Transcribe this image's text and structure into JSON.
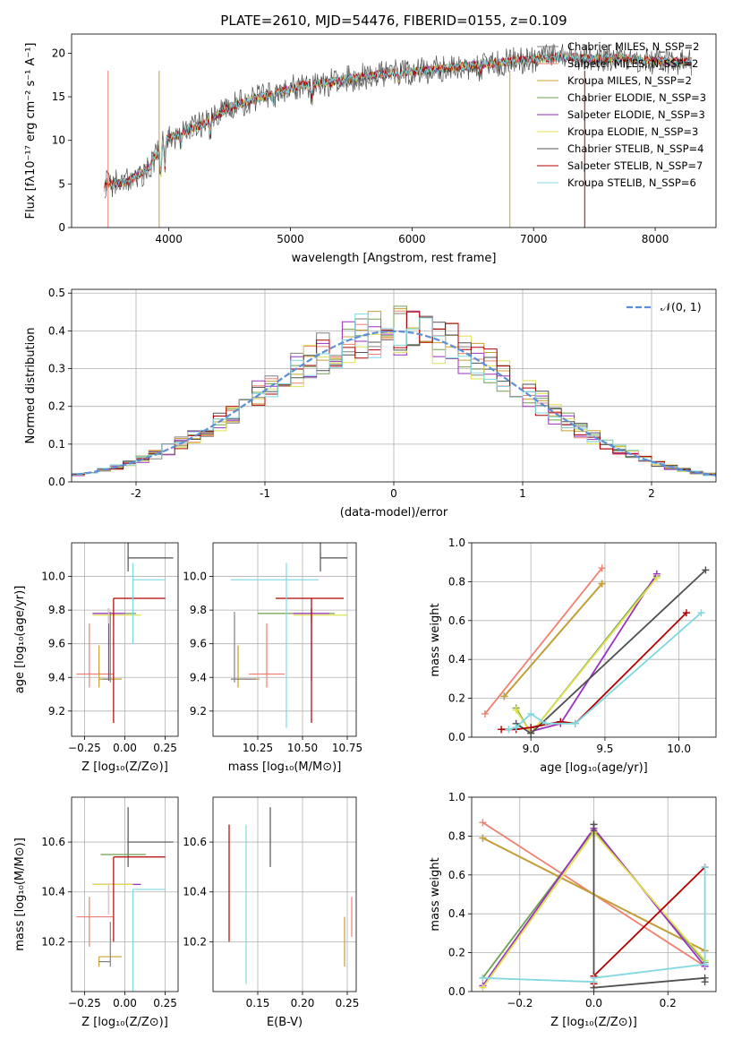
{
  "figure": {
    "title": "PLATE=2610, MJD=54476, FIBERID=0155, z=0.109"
  },
  "colors": {
    "chabrier_miles": "#808080",
    "salpeter_miles": "#f08070",
    "kroupa_miles": "#c8a030",
    "chabrier_elodie": "#70a050",
    "salpeter_elodie": "#9b30c0",
    "kroupa_elodie": "#e0e050",
    "chabrier_stelib": "#505050",
    "salpeter_stelib": "#b00000",
    "kroupa_stelib": "#80d8e0",
    "grid": "#b0b0b0",
    "normal_curve": "#5b8fd8"
  },
  "chart_data": [
    {
      "id": "spectrum",
      "type": "line",
      "xlabel": "wavelength [Angstrom, rest frame]",
      "ylabel": "Flux [fλ10⁻¹⁷ erg cm⁻² s⁻¹ A⁻¹]",
      "xlim": [
        3200,
        8500
      ],
      "ylim": [
        0,
        22.2
      ],
      "xticks": [
        4000,
        5000,
        6000,
        7000,
        8000
      ],
      "yticks": [
        0,
        5,
        10,
        15,
        20
      ],
      "legend_position": "right",
      "legend": [
        "Chabrier MILES, N_SSP=2",
        "Salpeter MILES, N_SSP=2",
        "Kroupa MILES, N_SSP=2",
        "Chabrier ELODIE, N_SSP=3",
        "Salpeter ELODIE, N_SSP=3",
        "Kroupa ELODIE, N_SSP=3",
        "Chabrier STELIB, N_SSP=4",
        "Salpeter STELIB, N_SSP=7",
        "Kroupa STELIB, N_SSP=6"
      ],
      "continuum": [
        [
          3500,
          5.0
        ],
        [
          3650,
          5.2
        ],
        [
          3750,
          6.0
        ],
        [
          3850,
          7.0
        ],
        [
          3950,
          10.0
        ],
        [
          4100,
          10.8
        ],
        [
          4300,
          12.0
        ],
        [
          4500,
          13.8
        ],
        [
          4700,
          14.7
        ],
        [
          4900,
          15.5
        ],
        [
          5100,
          16.3
        ],
        [
          5300,
          16.6
        ],
        [
          5500,
          17.1
        ],
        [
          5700,
          17.5
        ],
        [
          5900,
          17.8
        ],
        [
          6100,
          18.0
        ],
        [
          6300,
          18.3
        ],
        [
          6500,
          18.6
        ],
        [
          6700,
          18.9
        ],
        [
          6900,
          19.2
        ],
        [
          7100,
          19.4
        ],
        [
          7300,
          19.6
        ],
        [
          7500,
          19.3
        ],
        [
          7700,
          19.5
        ],
        [
          7900,
          19.2
        ],
        [
          8100,
          19.0
        ],
        [
          8300,
          19.0
        ]
      ],
      "ranges": [
        [
          3470,
          8300
        ],
        [
          3470,
          8300
        ],
        [
          3470,
          8300
        ],
        [
          3540,
          8300
        ],
        [
          3540,
          8300
        ],
        [
          3540,
          8300
        ],
        [
          3470,
          8300
        ],
        [
          3470,
          8300
        ],
        [
          3540,
          8300
        ]
      ]
    },
    {
      "id": "residuals",
      "type": "line",
      "xlabel": "(data-model)/error",
      "ylabel": "Normed distribution",
      "xlim": [
        -2.5,
        2.5
      ],
      "ylim": [
        0,
        0.51
      ],
      "xticks": [
        -2,
        -1,
        0,
        1,
        2
      ],
      "yticks": [
        0.0,
        0.1,
        0.2,
        0.3,
        0.4,
        0.5
      ],
      "legend_position": "top-right",
      "legend": [
        "𝒩(0, 1)"
      ],
      "histogram_bin_width": 0.1
    },
    {
      "id": "age_vs_Z",
      "type": "scatter",
      "xlabel": "Z [log₁₀(Z/Z⊙)]",
      "ylabel": "age  [log₁₀(age/yr)]",
      "xlim": [
        -0.33,
        0.33
      ],
      "ylim": [
        9.05,
        10.2
      ],
      "xticks": [
        -0.25,
        0.0,
        0.25
      ],
      "yticks": [
        9.2,
        9.4,
        9.6,
        9.8,
        10.0
      ],
      "points": [
        {
          "x": 0.02,
          "y": 10.11,
          "x_err": [
            0.0,
            0.28
          ],
          "y_err": [
            0.08,
            0.15
          ]
        },
        {
          "x": -0.22,
          "y": 9.42,
          "x_err": [
            0.08,
            0.15
          ],
          "y_err": [
            0.08,
            0.3
          ]
        },
        {
          "x": -0.16,
          "y": 9.39,
          "x_err": [
            0.0,
            0.14
          ],
          "y_err": [
            0.05,
            0.2
          ]
        },
        {
          "x": -0.1,
          "y": 9.78,
          "x_err": [
            0.1,
            0.17
          ],
          "y_err": [
            0.05,
            0.03
          ]
        },
        {
          "x": -0.1,
          "y": 9.78,
          "x_err": [
            0.1,
            0.1
          ],
          "y_err": [
            0.4,
            0.03
          ]
        },
        {
          "x": -0.1,
          "y": 9.77,
          "x_err": [
            0.1,
            0.2
          ],
          "y_err": [
            0.05,
            0.04
          ]
        },
        {
          "x": -0.09,
          "y": 9.39,
          "x_err": [
            0.05,
            0.0
          ],
          "y_err": [
            0.02,
            0.4
          ]
        },
        {
          "x": -0.07,
          "y": 9.87,
          "x_err": [
            0.0,
            0.32
          ],
          "y_err": [
            0.74,
            0.0
          ]
        },
        {
          "x": 0.05,
          "y": 9.98,
          "x_err": [
            0.0,
            0.2
          ],
          "y_err": [
            0.38,
            0.1
          ]
        }
      ]
    },
    {
      "id": "age_vs_mass",
      "type": "scatter",
      "xlabel": "mass [log₁₀(M/M⊙)]",
      "ylabel": "",
      "xlim": [
        10.0,
        10.8
      ],
      "ylim": [
        9.05,
        10.2
      ],
      "xticks": [
        10.25,
        10.5,
        10.75
      ],
      "yticks": [
        9.2,
        9.4,
        9.6,
        9.8,
        10.0
      ],
      "points": [
        {
          "x": 10.6,
          "y": 10.11,
          "x_err": [
            0.0,
            0.15
          ],
          "y_err": [
            0.08,
            0.15
          ]
        },
        {
          "x": 10.3,
          "y": 9.42,
          "x_err": [
            0.1,
            0.1
          ],
          "y_err": [
            0.08,
            0.3
          ]
        },
        {
          "x": 10.14,
          "y": 9.39,
          "x_err": [
            0.04,
            0.12
          ],
          "y_err": [
            0.05,
            0.2
          ]
        },
        {
          "x": 10.55,
          "y": 9.78,
          "x_err": [
            0.3,
            0.13
          ],
          "y_err": [
            0.05,
            0.03
          ]
        },
        {
          "x": 10.55,
          "y": 9.78,
          "x_err": [
            0.1,
            0.1
          ],
          "y_err": [
            0.4,
            0.03
          ]
        },
        {
          "x": 10.55,
          "y": 9.77,
          "x_err": [
            0.1,
            0.2
          ],
          "y_err": [
            0.05,
            0.04
          ]
        },
        {
          "x": 10.12,
          "y": 9.39,
          "x_err": [
            0.02,
            0.12
          ],
          "y_err": [
            0.02,
            0.4
          ]
        },
        {
          "x": 10.55,
          "y": 9.87,
          "x_err": [
            0.2,
            0.18
          ],
          "y_err": [
            0.74,
            0.0
          ]
        },
        {
          "x": 10.41,
          "y": 9.98,
          "x_err": [
            0.31,
            0.18
          ],
          "y_err": [
            0.88,
            0.1
          ]
        }
      ]
    },
    {
      "id": "weight_vs_age",
      "type": "line",
      "xlabel": "age  [log₁₀(age/yr)]",
      "ylabel": "mass weight",
      "xlim": [
        8.6,
        10.25
      ],
      "ylim": [
        0,
        1.0
      ],
      "xticks": [
        9.0,
        9.5,
        10.0
      ],
      "yticks": [
        0.0,
        0.2,
        0.4,
        0.6,
        0.8,
        1.0
      ],
      "series": [
        {
          "x": [
            8.82,
            9.48
          ],
          "y": [
            0.21,
            0.79
          ]
        },
        {
          "x": [
            8.69,
            9.48
          ],
          "y": [
            0.12,
            0.87
          ]
        },
        {
          "x": [
            8.82,
            9.48
          ],
          "y": [
            0.21,
            0.79
          ]
        },
        {
          "x": [
            8.9,
            9.0,
            9.85
          ],
          "y": [
            0.15,
            0.02,
            0.83
          ]
        },
        {
          "x": [
            9.0,
            9.2,
            9.85
          ],
          "y": [
            0.03,
            0.07,
            0.84
          ]
        },
        {
          "x": [
            8.9,
            9.0,
            9.85
          ],
          "y": [
            0.14,
            0.02,
            0.82
          ]
        },
        {
          "x": [
            8.9,
            9.0,
            10.18
          ],
          "y": [
            0.07,
            0.02,
            0.86
          ]
        },
        {
          "x": [
            8.8,
            8.9,
            9.0,
            9.2,
            9.3,
            10.05
          ],
          "y": [
            0.04,
            0.04,
            0.05,
            0.08,
            0.07,
            0.64
          ]
        },
        {
          "x": [
            8.85,
            8.9,
            9.0,
            9.1,
            9.3,
            10.15
          ],
          "y": [
            0.04,
            0.05,
            0.12,
            0.07,
            0.07,
            0.64
          ]
        }
      ]
    },
    {
      "id": "mass_vs_Z",
      "type": "scatter",
      "xlabel": "Z [log₁₀(Z/Z⊙)]",
      "ylabel": "mass [log₁₀(M/M⊙)]",
      "xlim": [
        -0.33,
        0.33
      ],
      "ylim": [
        10.0,
        10.78
      ],
      "xticks": [
        -0.25,
        0.0,
        0.25
      ],
      "yticks": [
        10.2,
        10.4,
        10.6
      ],
      "points": [
        {
          "x": 0.02,
          "y": 10.6,
          "x_err": [
            0.0,
            0.28
          ],
          "y_err": [
            0.1,
            0.14
          ]
        },
        {
          "x": -0.22,
          "y": 10.3,
          "x_err": [
            0.08,
            0.15
          ],
          "y_err": [
            0.12,
            0.08
          ]
        },
        {
          "x": -0.16,
          "y": 10.14,
          "x_err": [
            0.0,
            0.14
          ],
          "y_err": [
            0.04,
            0.0
          ]
        },
        {
          "x": -0.1,
          "y": 10.55,
          "x_err": [
            0.05,
            0.23
          ],
          "y_err": [
            0.0,
            0.0
          ]
        },
        {
          "x": -0.1,
          "y": 10.43,
          "x_err": [
            0.1,
            0.2
          ],
          "y_err": [
            0.12,
            0.0
          ]
        },
        {
          "x": -0.1,
          "y": 10.43,
          "x_err": [
            0.1,
            0.15
          ],
          "y_err": [
            0.12,
            0.0
          ]
        },
        {
          "x": -0.09,
          "y": 10.12,
          "x_err": [
            0.07,
            0.0
          ],
          "y_err": [
            0.02,
            0.16
          ]
        },
        {
          "x": -0.07,
          "y": 10.54,
          "x_err": [
            0.0,
            0.32
          ],
          "y_err": [
            0.34,
            0.0
          ]
        },
        {
          "x": 0.05,
          "y": 10.41,
          "x_err": [
            0.0,
            0.2
          ],
          "y_err": [
            0.41,
            0.0
          ]
        }
      ]
    },
    {
      "id": "mass_vs_ebv",
      "type": "scatter",
      "xlabel": "E(B-V)",
      "ylabel": "",
      "xlim": [
        0.1,
        0.26
      ],
      "ylim": [
        10.0,
        10.78
      ],
      "xticks": [
        0.15,
        0.2,
        0.25
      ],
      "yticks": [
        10.2,
        10.4,
        10.6
      ],
      "points": [
        {
          "x": 0.164,
          "y": 10.6,
          "x_err": [
            0,
            0
          ],
          "y_err": [
            0.1,
            0.14
          ]
        },
        {
          "x": 0.255,
          "y": 10.3,
          "x_err": [
            0,
            0
          ],
          "y_err": [
            0.08,
            0.08
          ]
        },
        {
          "x": 0.247,
          "y": 10.14,
          "x_err": [
            0,
            0
          ],
          "y_err": [
            0.04,
            0.16
          ]
        },
        {
          "x": 0.118,
          "y": 10.43,
          "x_err": [
            0,
            0
          ],
          "y_err": [
            0.23,
            0.24
          ]
        },
        {
          "x": 0.137,
          "y": 10.35,
          "x_err": [
            0,
            0
          ],
          "y_err": [
            0.32,
            0.32
          ]
        }
      ]
    },
    {
      "id": "weight_vs_Z",
      "type": "line",
      "xlabel": "Z [log₁₀(Z/Z⊙)]",
      "ylabel": "mass weight",
      "xlim": [
        -0.33,
        0.33
      ],
      "ylim": [
        0,
        1.0
      ],
      "xticks": [
        -0.2,
        0.0,
        0.2
      ],
      "yticks": [
        0.0,
        0.2,
        0.4,
        0.6,
        0.8,
        1.0
      ],
      "series": [
        {
          "x": [
            -0.3,
            0.3
          ],
          "y": [
            0.79,
            0.21
          ]
        },
        {
          "x": [
            -0.3,
            0.3
          ],
          "y": [
            0.87,
            0.13
          ]
        },
        {
          "x": [
            -0.3,
            0.3
          ],
          "y": [
            0.79,
            0.21
          ]
        },
        {
          "x": [
            -0.3,
            0.0,
            0.3
          ],
          "y": [
            0.07,
            0.83,
            0.15
          ]
        },
        {
          "x": [
            -0.3,
            0.0,
            0.3
          ],
          "y": [
            0.03,
            0.84,
            0.13
          ]
        },
        {
          "x": [
            -0.3,
            0.0,
            0.3
          ],
          "y": [
            0.02,
            0.82,
            0.16
          ]
        },
        {
          "x": [
            0.0,
            0.0,
            0.3,
            0.3
          ],
          "y": [
            0.86,
            0.02,
            0.07,
            0.05
          ]
        },
        {
          "x": [
            0.0,
            0.0,
            0.3
          ],
          "y": [
            0.04,
            0.08,
            0.64
          ]
        },
        {
          "x": [
            -0.3,
            0.0,
            0.0,
            0.3,
            0.3
          ],
          "y": [
            0.07,
            0.05,
            0.07,
            0.14,
            0.64
          ]
        }
      ]
    }
  ]
}
